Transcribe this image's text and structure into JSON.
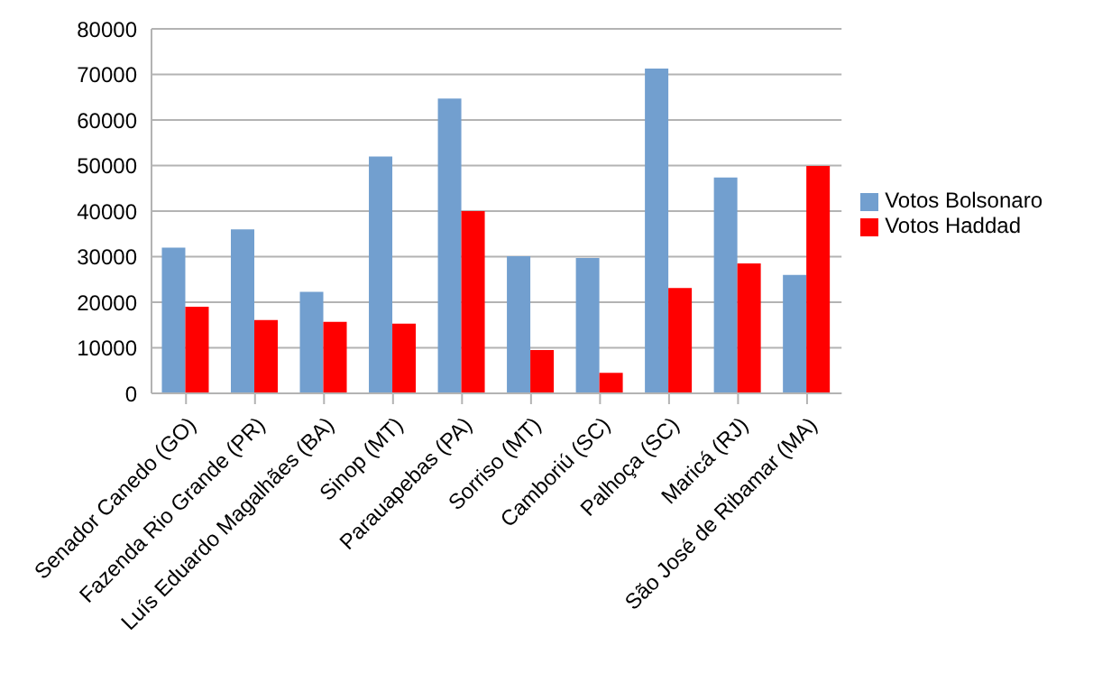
{
  "chart_data": {
    "type": "bar",
    "categories": [
      "Senador Canedo (GO)",
      "Fazenda Rio Grande (PR)",
      "Luís Eduardo Magalhães (BA)",
      "Sinop (MT)",
      "Parauapebas (PA)",
      "Sorriso (MT)",
      "Camboriú (SC)",
      "Palhoça (SC)",
      "Maricá (RJ)",
      "São José de Ribamar (MA)"
    ],
    "series": [
      {
        "name": "Votos Bolsonaro",
        "color": "#729fcf",
        "values": [
          32000,
          36000,
          22300,
          52000,
          64700,
          30100,
          29700,
          71300,
          47400,
          26000
        ]
      },
      {
        "name": "Votos Haddad",
        "color": "#ff0000",
        "values": [
          19000,
          16100,
          15700,
          15300,
          40000,
          9500,
          4500,
          23100,
          28500,
          49900
        ]
      }
    ],
    "ylim": [
      0,
      80000
    ],
    "yticks": [
      0,
      10000,
      20000,
      30000,
      40000,
      50000,
      60000,
      70000,
      80000
    ],
    "grid": "y",
    "legend": "right"
  }
}
